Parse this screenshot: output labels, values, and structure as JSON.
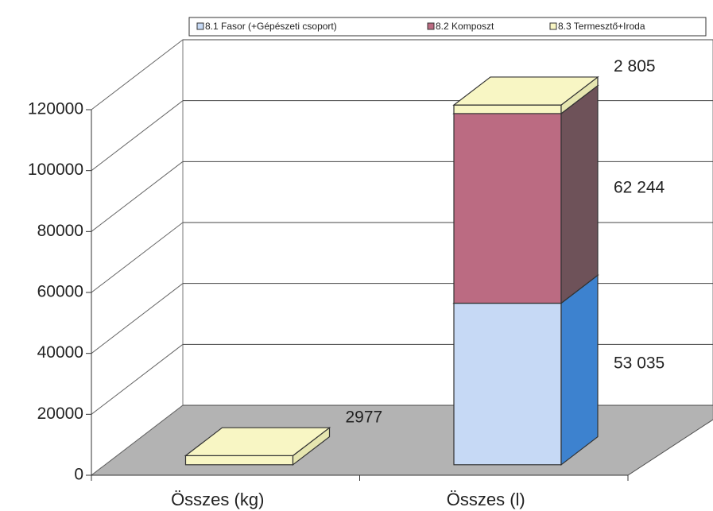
{
  "chart_data": {
    "type": "bar",
    "stacked": true,
    "categories": [
      "Összes (kg)",
      "Összes (l)"
    ],
    "series": [
      {
        "name": "8.1 Fasor (+Gépészeti csoport)",
        "color": "#c6d9f5",
        "side_color": "#3d82cf",
        "values": [
          0,
          53035
        ],
        "value_labels": [
          null,
          "53 035"
        ]
      },
      {
        "name": "8.2 Komposzt",
        "color": "#bb6b82",
        "side_color": "#6e5259",
        "values": [
          0,
          62244
        ],
        "value_labels": [
          null,
          "62 244"
        ]
      },
      {
        "name": "8.3 Termesztő+Iroda",
        "color": "#f8f6c4",
        "side_color": "#e6e6b0",
        "values": [
          2977,
          2805
        ],
        "value_labels": [
          "2977",
          "2 805"
        ]
      }
    ],
    "ylim": [
      0,
      120000
    ],
    "yticks": [
      0,
      20000,
      40000,
      60000,
      80000,
      100000,
      120000
    ],
    "grid": true,
    "legend": "top"
  }
}
